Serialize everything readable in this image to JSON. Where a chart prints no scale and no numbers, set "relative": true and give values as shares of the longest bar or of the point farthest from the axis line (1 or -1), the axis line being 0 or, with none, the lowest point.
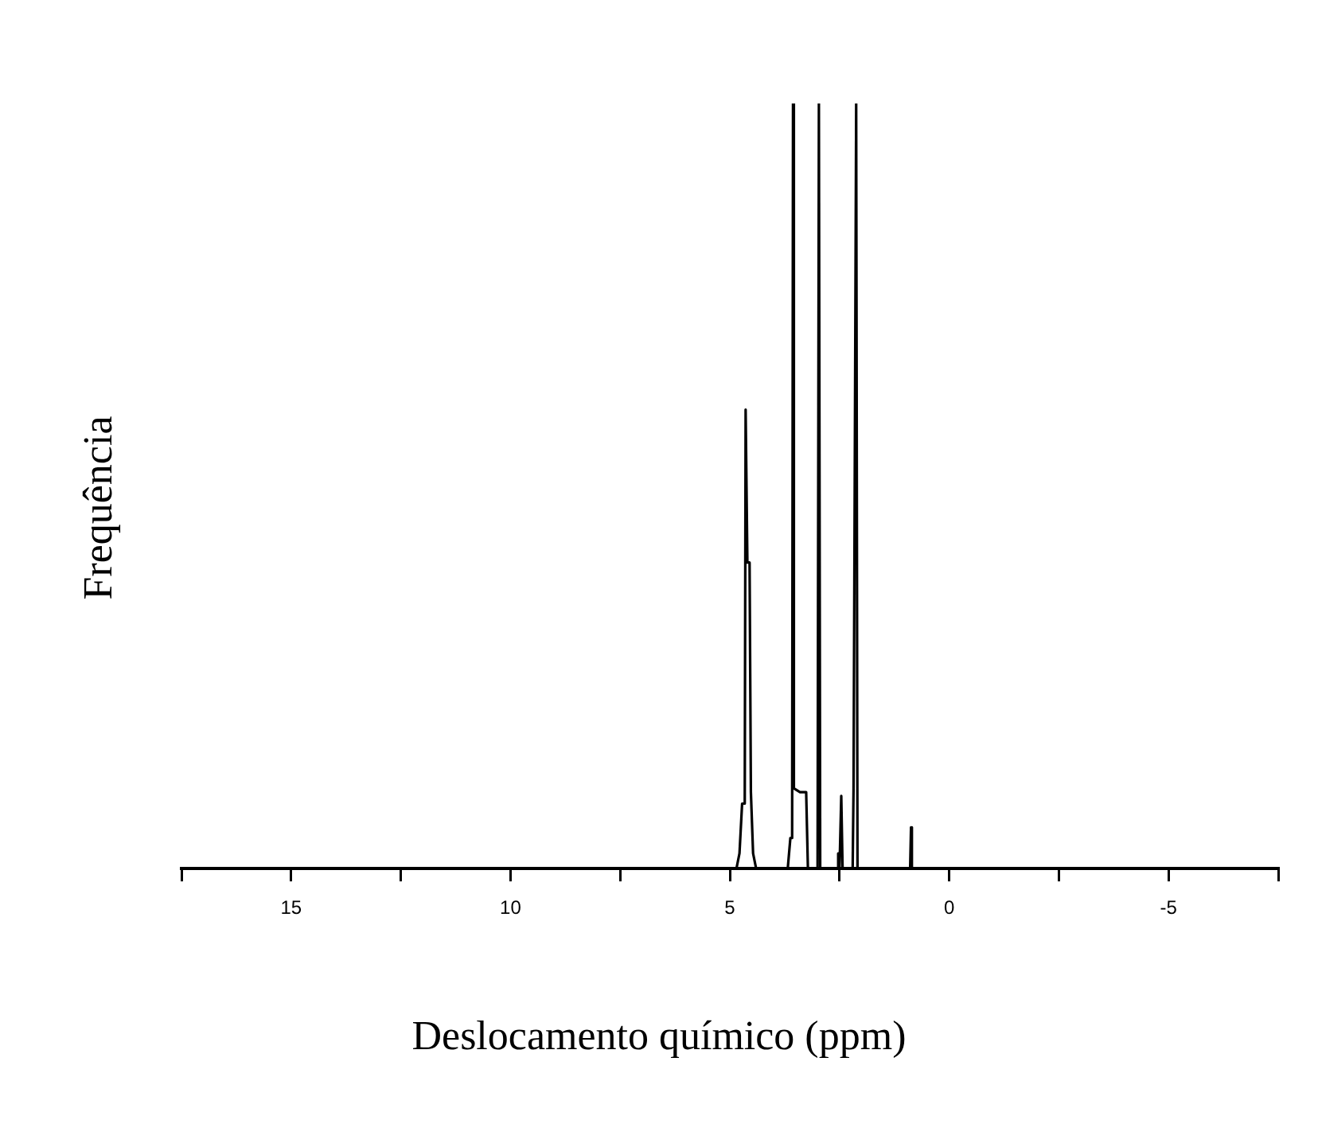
{
  "chart_data": {
    "type": "line",
    "xlabel": "Deslocamento químico (ppm)",
    "ylabel": "Frequência",
    "relative": true,
    "grid": false,
    "legend": false,
    "marker": "none",
    "line_style": "solid",
    "xlim": [
      17.5,
      -7.5
    ],
    "xticks": [
      {
        "value": 17.5,
        "label": null
      },
      15,
      {
        "value": 12.5,
        "label": null
      },
      10,
      {
        "value": 7.5,
        "label": null
      },
      5,
      {
        "value": 2.5,
        "label": null
      },
      0,
      {
        "value": -2.5,
        "label": null
      },
      -5,
      {
        "value": -7.5,
        "label": null
      }
    ],
    "series": [
      {
        "color": "#000000",
        "x": [
          16.2,
          4.85,
          4.78,
          4.72,
          4.66,
          4.64,
          4.6,
          4.55,
          4.52,
          4.47,
          4.4,
          3.68,
          3.62,
          3.58,
          3.56,
          3.54,
          3.4,
          3.3,
          3.26,
          3.22,
          3.0,
          2.97,
          2.94,
          2.55,
          2.53,
          2.5,
          2.46,
          2.43,
          2.2,
          2.18,
          2.12,
          2.09,
          0.89,
          0.87,
          0.85,
          -3.9
        ],
        "values": [
          0,
          0,
          0.02,
          0.085,
          0.085,
          0.6,
          0.4,
          0.4,
          0.1,
          0.02,
          0,
          0,
          0.04,
          0.04,
          1,
          0.105,
          0.1,
          0.1,
          0.1,
          0,
          0,
          1,
          0,
          0,
          0.02,
          0,
          0.095,
          0,
          0,
          0.105,
          1,
          0,
          0,
          0.054,
          0,
          0
        ]
      }
    ]
  }
}
